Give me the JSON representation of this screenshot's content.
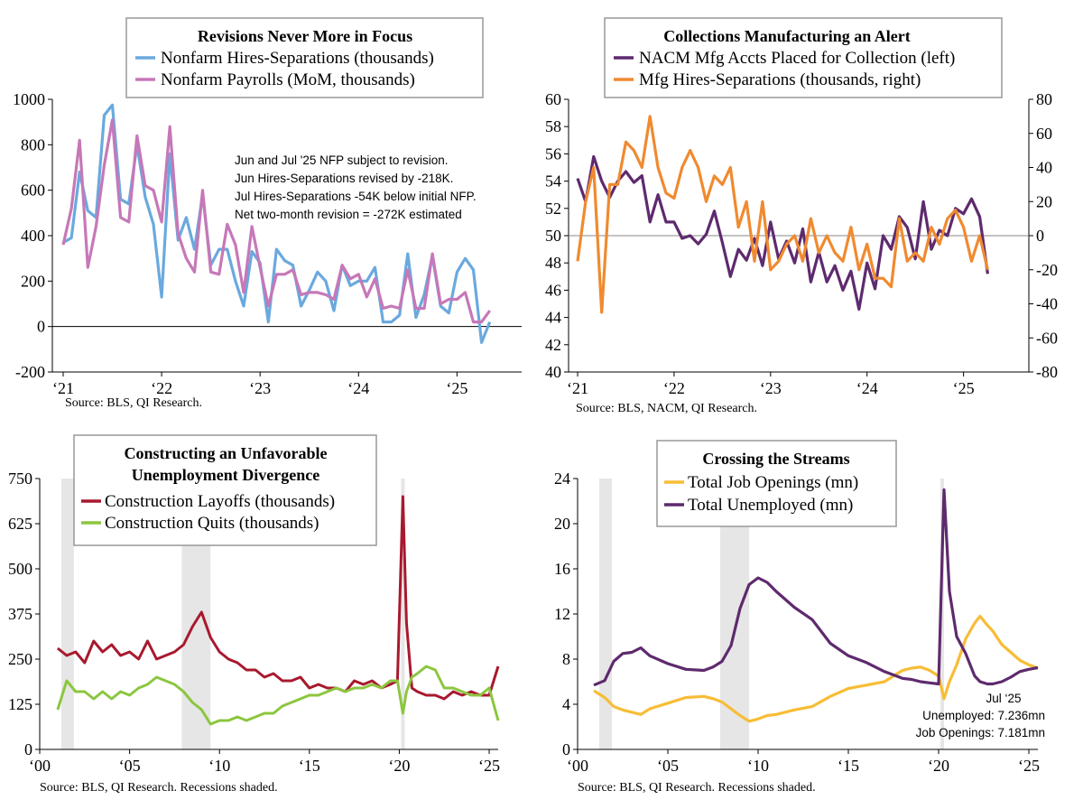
{
  "chart_data": [
    {
      "type": "line",
      "title": "Revisions Never More in Focus",
      "source": "Source: BLS, QI Research.",
      "x_ticks": [
        "‘21",
        "‘22",
        "‘23",
        "‘24",
        "‘25"
      ],
      "ylim": [
        -200,
        1000
      ],
      "y_ticks": [
        "1000",
        "800",
        "600",
        "400",
        "200",
        "0",
        "-200"
      ],
      "annotation": [
        "Jun and Jul '25 NFP subject to revision.",
        "Jun Hires-Separations revised by -218K.",
        "Jul Hires-Separations -54K below initial NFP.",
        "Net two-month revision = -272K estimated"
      ],
      "x_start": "2021-01",
      "series": [
        {
          "name": "Nonfarm Hires-Separations (thousands)",
          "color": "#6aa9de",
          "values": [
            370,
            390,
            680,
            510,
            480,
            930,
            975,
            560,
            540,
            800,
            570,
            450,
            130,
            760,
            380,
            480,
            340,
            580,
            270,
            340,
            340,
            200,
            90,
            330,
            280,
            20,
            340,
            290,
            270,
            90,
            160,
            240,
            200,
            70,
            270,
            180,
            200,
            200,
            260,
            20,
            20,
            50,
            320,
            40,
            140,
            310,
            90,
            60,
            240,
            300,
            250,
            -70,
            20
          ]
        },
        {
          "name": "Nonfarm Payrolls (MoM, thousands)",
          "color": "#c678b8",
          "values": [
            360,
            520,
            820,
            260,
            440,
            710,
            910,
            480,
            460,
            840,
            620,
            600,
            460,
            880,
            410,
            300,
            240,
            600,
            240,
            230,
            450,
            360,
            150,
            440,
            260,
            90,
            230,
            230,
            250,
            140,
            150,
            150,
            140,
            120,
            270,
            210,
            230,
            130,
            210,
            80,
            90,
            80,
            250,
            80,
            80,
            320,
            100,
            120,
            120,
            150,
            20,
            20,
            70
          ]
        }
      ]
    },
    {
      "type": "line",
      "title": "Collections Manufacturing an Alert",
      "source": "Source: BLS, NACM, QI Research.",
      "x_ticks": [
        "‘21",
        "‘22",
        "‘23",
        "‘24",
        "‘25"
      ],
      "ylim_left": [
        40,
        60
      ],
      "y_ticks_left": [
        "60",
        "58",
        "56",
        "54",
        "52",
        "50",
        "48",
        "46",
        "44",
        "42",
        "40"
      ],
      "ylim_right": [
        -80,
        80
      ],
      "y_ticks_right": [
        "80",
        "60",
        "40",
        "20",
        "0",
        "-20",
        "-40",
        "-60",
        "-80"
      ],
      "x_start": "2021-01",
      "series": [
        {
          "name": "NACM Mfg Accts Placed for Collection (left)",
          "color": "#5e2a6e",
          "axis": "left",
          "values": [
            54.2,
            52.5,
            55.8,
            54.0,
            52.8,
            54.0,
            54.7,
            53.9,
            54.4,
            51.0,
            53.0,
            51.0,
            51.0,
            49.8,
            50.0,
            49.4,
            50.1,
            51.8,
            49.5,
            47.0,
            49.0,
            48.2,
            49.8,
            47.8,
            51.0,
            48.3,
            49.6,
            48.0,
            50.5,
            46.6,
            48.8,
            46.6,
            47.8,
            46.0,
            47.4,
            44.6,
            48.0,
            46.1,
            50.0,
            49.0,
            51.4,
            50.6,
            48.3,
            52.5,
            49.0,
            50.4,
            50.0,
            52.0,
            51.6,
            52.7,
            51.4,
            47.2
          ]
        },
        {
          "name": "Mfg Hires-Separations (thousands, right)",
          "color": "#f08a30",
          "axis": "right",
          "values": [
            -15,
            20,
            40,
            -45,
            30,
            30,
            55,
            50,
            40,
            70,
            40,
            25,
            22,
            40,
            50,
            40,
            20,
            35,
            30,
            40,
            5,
            20,
            -15,
            20,
            -20,
            -15,
            -5,
            0,
            -15,
            10,
            -10,
            0,
            -10,
            -15,
            5,
            -20,
            -5,
            -25,
            -25,
            -30,
            10,
            -15,
            -10,
            -15,
            5,
            -5,
            10,
            15,
            5,
            -15,
            0,
            -20
          ]
        }
      ]
    },
    {
      "type": "line",
      "title": "Constructing an Unfavorable Unemployment Divergence",
      "title_lines": [
        "Constructing an Unfavorable",
        "Unemployment Divergence"
      ],
      "source": "Source: BLS, QI Research. Recessions shaded.",
      "x_ticks": [
        "‘00",
        "‘05",
        "‘10",
        "‘15",
        "‘20",
        "‘25"
      ],
      "y_ticks": [
        "750",
        "625",
        "500",
        "375",
        "250",
        "125",
        "0"
      ],
      "ylim": [
        0,
        750
      ],
      "recessions": [
        [
          2001.2,
          2001.9
        ],
        [
          2007.9,
          2009.5
        ],
        [
          2020.1,
          2020.3
        ]
      ],
      "series": [
        {
          "name": "Construction Layoffs (thousands)",
          "color": "#a8192e",
          "x": [
            2001.0,
            2001.5,
            2002.0,
            2002.5,
            2003.0,
            2003.5,
            2004.0,
            2004.5,
            2005.0,
            2005.5,
            2006.0,
            2006.5,
            2007.0,
            2007.5,
            2008.0,
            2008.5,
            2009.0,
            2009.5,
            2010.0,
            2010.5,
            2011.0,
            2011.5,
            2012.0,
            2012.5,
            2013.0,
            2013.5,
            2014.0,
            2014.5,
            2015.0,
            2015.5,
            2016.0,
            2016.5,
            2017.0,
            2017.5,
            2018.0,
            2018.5,
            2019.0,
            2019.5,
            2019.9,
            2020.2,
            2020.4,
            2020.7,
            2021.0,
            2021.5,
            2022.0,
            2022.5,
            2023.0,
            2023.5,
            2024.0,
            2024.5,
            2025.0,
            2025.5
          ],
          "values": [
            280,
            260,
            270,
            240,
            300,
            270,
            290,
            260,
            270,
            250,
            300,
            250,
            260,
            270,
            290,
            340,
            380,
            310,
            270,
            250,
            240,
            220,
            220,
            200,
            210,
            190,
            190,
            200,
            170,
            180,
            170,
            170,
            160,
            190,
            180,
            190,
            170,
            180,
            190,
            700,
            350,
            170,
            160,
            150,
            150,
            140,
            160,
            150,
            160,
            150,
            150,
            230
          ]
        },
        {
          "name": "Construction Quits (thousands)",
          "color": "#8cc63f",
          "x": [
            2001.0,
            2001.5,
            2002.0,
            2002.5,
            2003.0,
            2003.5,
            2004.0,
            2004.5,
            2005.0,
            2005.5,
            2006.0,
            2006.5,
            2007.0,
            2007.5,
            2008.0,
            2008.5,
            2009.0,
            2009.5,
            2010.0,
            2010.5,
            2011.0,
            2011.5,
            2012.0,
            2012.5,
            2013.0,
            2013.5,
            2014.0,
            2014.5,
            2015.0,
            2015.5,
            2016.0,
            2016.5,
            2017.0,
            2017.5,
            2018.0,
            2018.5,
            2019.0,
            2019.5,
            2019.9,
            2020.2,
            2020.4,
            2020.7,
            2021.0,
            2021.5,
            2022.0,
            2022.5,
            2023.0,
            2023.5,
            2024.0,
            2024.5,
            2025.0,
            2025.5
          ],
          "values": [
            110,
            190,
            160,
            160,
            140,
            160,
            140,
            160,
            150,
            170,
            180,
            200,
            190,
            180,
            160,
            130,
            110,
            70,
            80,
            80,
            90,
            80,
            90,
            100,
            100,
            120,
            130,
            140,
            150,
            150,
            160,
            170,
            160,
            170,
            170,
            180,
            170,
            190,
            190,
            100,
            160,
            200,
            210,
            230,
            220,
            170,
            170,
            160,
            150,
            150,
            170,
            80
          ]
        }
      ]
    },
    {
      "type": "line",
      "title": "Crossing the Streams",
      "source": "Source: BLS, QI Research. Recessions shaded.",
      "x_ticks": [
        "‘00",
        "‘05",
        "‘10",
        "‘15",
        "‘20",
        "‘25"
      ],
      "y_ticks": [
        "24",
        "20",
        "16",
        "12",
        "8",
        "4",
        "0"
      ],
      "ylim": [
        0,
        24
      ],
      "recessions": [
        [
          2001.2,
          2001.9
        ],
        [
          2007.9,
          2009.5
        ],
        [
          2020.1,
          2020.3
        ]
      ],
      "annotation": [
        "Jul ‘25",
        "Unemployed: 7.236mn",
        "Job Openings: 7.181mn"
      ],
      "series": [
        {
          "name": "Total Job Openings (mn)",
          "color": "#f7bd36",
          "x": [
            2000.9,
            2001.5,
            2002.0,
            2002.5,
            2003.0,
            2003.5,
            2004.0,
            2005.0,
            2006.0,
            2007.0,
            2007.5,
            2008.0,
            2008.5,
            2009.0,
            2009.5,
            2010.0,
            2010.5,
            2011.0,
            2012.0,
            2013.0,
            2014.0,
            2015.0,
            2016.0,
            2017.0,
            2018.0,
            2018.5,
            2019.0,
            2019.5,
            2020.0,
            2020.3,
            2020.6,
            2021.0,
            2021.5,
            2022.0,
            2022.3,
            2022.7,
            2023.0,
            2023.5,
            2024.0,
            2024.5,
            2025.0,
            2025.5
          ],
          "values": [
            5.2,
            4.6,
            3.8,
            3.5,
            3.3,
            3.1,
            3.6,
            4.1,
            4.6,
            4.7,
            4.5,
            4.2,
            3.6,
            3.0,
            2.5,
            2.7,
            3.0,
            3.1,
            3.5,
            3.8,
            4.7,
            5.4,
            5.7,
            6.0,
            7.0,
            7.2,
            7.3,
            7.0,
            6.5,
            4.5,
            6.0,
            7.5,
            9.8,
            11.2,
            11.8,
            11.0,
            10.5,
            9.3,
            8.6,
            7.9,
            7.5,
            7.2
          ]
        },
        {
          "name": "Total Unemployed (mn)",
          "color": "#5e2a6e",
          "x": [
            2000.9,
            2001.5,
            2002.0,
            2002.5,
            2003.0,
            2003.5,
            2004.0,
            2005.0,
            2006.0,
            2007.0,
            2007.5,
            2008.0,
            2008.5,
            2009.0,
            2009.5,
            2010.0,
            2010.5,
            2011.0,
            2012.0,
            2013.0,
            2014.0,
            2015.0,
            2016.0,
            2017.0,
            2018.0,
            2018.5,
            2019.0,
            2019.5,
            2020.0,
            2020.3,
            2020.6,
            2021.0,
            2021.5,
            2022.0,
            2022.3,
            2022.7,
            2023.0,
            2023.5,
            2024.0,
            2024.5,
            2025.0,
            2025.5
          ],
          "values": [
            5.7,
            6.1,
            7.8,
            8.5,
            8.6,
            9.0,
            8.3,
            7.6,
            7.1,
            7.0,
            7.3,
            7.8,
            9.2,
            12.5,
            14.6,
            15.2,
            14.8,
            14.0,
            12.6,
            11.5,
            9.4,
            8.3,
            7.7,
            6.9,
            6.3,
            6.2,
            6.0,
            5.9,
            5.8,
            23.0,
            14.0,
            10.0,
            8.5,
            6.5,
            6.0,
            5.8,
            5.8,
            6.0,
            6.4,
            6.9,
            7.1,
            7.236
          ]
        }
      ]
    }
  ]
}
